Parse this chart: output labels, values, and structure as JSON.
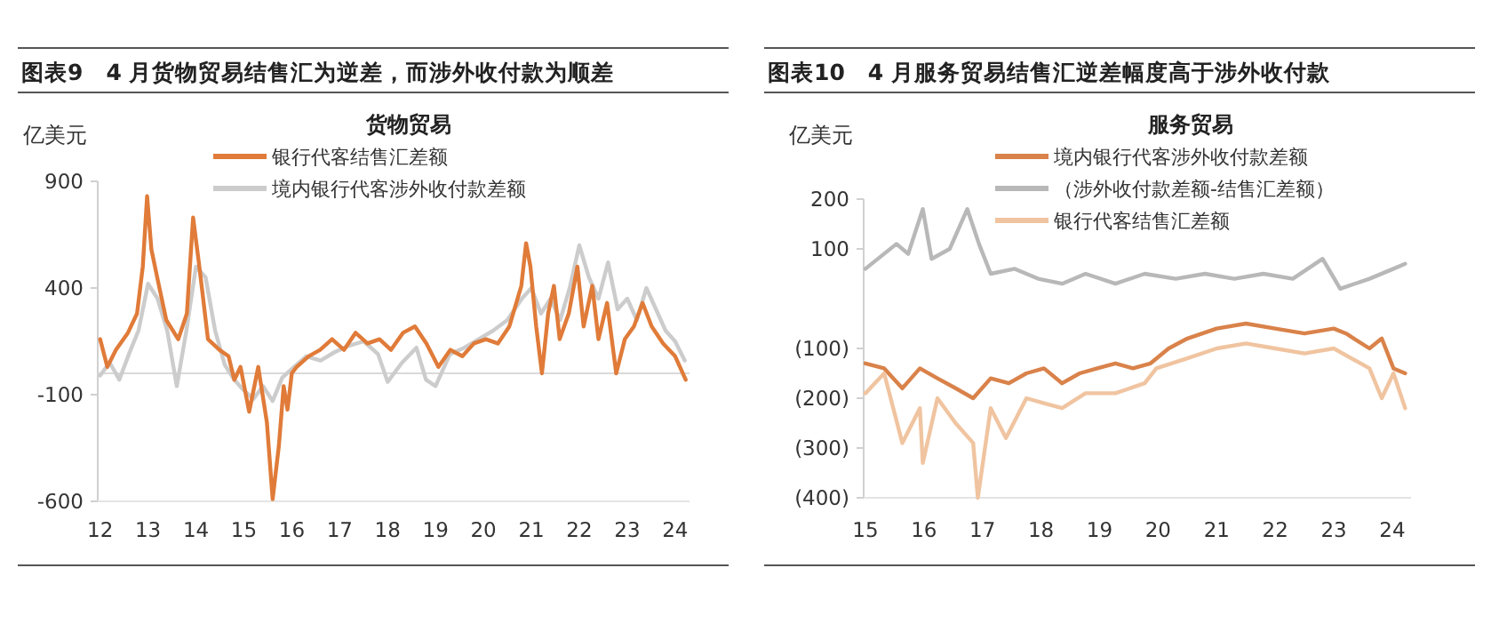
{
  "chart_data": [
    {
      "type": "line",
      "title": "图表9　4 月货物贸易结售汇为逆差，而涉外收付款为顺差",
      "legend_title": "货物贸易",
      "ylabel": "亿美元",
      "legend": "top",
      "xlim": [
        2011.95,
        2024.3
      ],
      "ylim": [
        -600,
        900
      ],
      "xticks": [
        {
          "value": 2012,
          "label": "12"
        },
        {
          "value": 2013,
          "label": "13"
        },
        {
          "value": 2014,
          "label": "14"
        },
        {
          "value": 2015,
          "label": "15"
        },
        {
          "value": 2016,
          "label": "16"
        },
        {
          "value": 2017,
          "label": "17"
        },
        {
          "value": 2018,
          "label": "18"
        },
        {
          "value": 2019,
          "label": "19"
        },
        {
          "value": 2020,
          "label": "20"
        },
        {
          "value": 2021,
          "label": "21"
        },
        {
          "value": 2022,
          "label": "22"
        },
        {
          "value": 2023,
          "label": "23"
        },
        {
          "value": 2024,
          "label": "24"
        }
      ],
      "yticks": [
        900,
        400,
        -100,
        -600
      ],
      "ref_lines": [
        {
          "axis": "y",
          "value": 0,
          "color": "#d9d9d9"
        }
      ],
      "series": [
        {
          "name": "境内银行代客涉外收付款差额",
          "color": "#cccccc",
          "x": [
            2012.0,
            2012.2,
            2012.4,
            2012.6,
            2012.8,
            2013.0,
            2013.2,
            2013.4,
            2013.6,
            2013.8,
            2014.0,
            2014.2,
            2014.4,
            2014.6,
            2014.8,
            2015.0,
            2015.2,
            2015.4,
            2015.6,
            2015.8,
            2016.0,
            2016.3,
            2016.6,
            2016.9,
            2017.2,
            2017.5,
            2017.8,
            2018.0,
            2018.3,
            2018.6,
            2018.8,
            2019.0,
            2019.3,
            2019.6,
            2019.9,
            2020.2,
            2020.5,
            2020.8,
            2021.0,
            2021.2,
            2021.4,
            2021.6,
            2021.8,
            2022.0,
            2022.2,
            2022.4,
            2022.6,
            2022.8,
            2023.0,
            2023.2,
            2023.4,
            2023.6,
            2023.8,
            2024.0,
            2024.2
          ],
          "values": [
            -10,
            50,
            -30,
            90,
            200,
            420,
            350,
            200,
            -60,
            200,
            500,
            450,
            200,
            40,
            -30,
            -80,
            -120,
            -60,
            -130,
            -20,
            20,
            80,
            60,
            100,
            130,
            150,
            90,
            -40,
            50,
            120,
            -30,
            -60,
            90,
            120,
            160,
            200,
            250,
            350,
            400,
            280,
            350,
            250,
            400,
            600,
            450,
            350,
            520,
            300,
            350,
            250,
            400,
            300,
            200,
            150,
            60
          ]
        },
        {
          "name": "银行代客结售汇差额",
          "color": "#e07b39",
          "x": [
            2012.0,
            2012.15,
            2012.33,
            2012.58,
            2012.77,
            2012.89,
            2012.98,
            2013.07,
            2013.2,
            2013.38,
            2013.63,
            2013.81,
            2013.94,
            2014.06,
            2014.25,
            2014.49,
            2014.68,
            2014.8,
            2014.93,
            2015.11,
            2015.3,
            2015.48,
            2015.6,
            2015.73,
            2015.83,
            2015.91,
            2016.0,
            2016.1,
            2016.35,
            2016.59,
            2016.84,
            2017.09,
            2017.33,
            2017.58,
            2017.83,
            2018.07,
            2018.32,
            2018.57,
            2018.81,
            2019.06,
            2019.31,
            2019.56,
            2019.8,
            2020.05,
            2020.3,
            2020.54,
            2020.79,
            2020.89,
            2020.98,
            2021.1,
            2021.22,
            2021.35,
            2021.47,
            2021.59,
            2021.78,
            2021.96,
            2022.09,
            2022.27,
            2022.4,
            2022.58,
            2022.77,
            2022.95,
            2023.14,
            2023.32,
            2023.51,
            2023.75,
            2024.0,
            2024.22
          ],
          "values": [
            160,
            30,
            110,
            190,
            280,
            500,
            830,
            580,
            440,
            250,
            160,
            280,
            730,
            520,
            160,
            110,
            80,
            -30,
            30,
            -180,
            30,
            -230,
            -590,
            -340,
            -60,
            -170,
            0,
            30,
            80,
            110,
            160,
            110,
            190,
            140,
            160,
            110,
            190,
            220,
            140,
            30,
            110,
            80,
            140,
            160,
            140,
            220,
            410,
            610,
            500,
            220,
            0,
            280,
            410,
            160,
            280,
            500,
            220,
            410,
            160,
            330,
            0,
            160,
            220,
            330,
            220,
            140,
            80,
            -30
          ]
        }
      ]
    },
    {
      "type": "line",
      "title": "图表10　4 月服务贸易结售汇逆差幅度高于涉外收付款",
      "legend_title": "服务贸易",
      "ylabel": "亿美元",
      "legend": "top",
      "xlim": [
        2014.97,
        2024.32
      ],
      "ylim": [
        -400,
        200
      ],
      "xticks": [
        {
          "value": 2015,
          "label": "15"
        },
        {
          "value": 2016,
          "label": "16"
        },
        {
          "value": 2017,
          "label": "17"
        },
        {
          "value": 2018,
          "label": "18"
        },
        {
          "value": 2019,
          "label": "19"
        },
        {
          "value": 2020,
          "label": "20"
        },
        {
          "value": 2021,
          "label": "21"
        },
        {
          "value": 2022,
          "label": "22"
        },
        {
          "value": 2023,
          "label": "23"
        },
        {
          "value": 2024,
          "label": "24"
        }
      ],
      "yticks": [
        200,
        100,
        {
          "value": -100,
          "label": "(100)"
        },
        {
          "value": -200,
          "label": "(200)"
        },
        {
          "value": -300,
          "label": "(300)"
        },
        {
          "value": -400,
          "label": "(400)"
        }
      ],
      "series": [
        {
          "name": "境内银行代客涉外收付款差额",
          "color": "#d9824a",
          "x": [
            2015.0,
            2015.32,
            2015.63,
            2015.93,
            2016.23,
            2016.54,
            2016.84,
            2017.14,
            2017.45,
            2017.75,
            2018.05,
            2018.36,
            2018.66,
            2018.96,
            2019.27,
            2019.57,
            2019.87,
            2020.18,
            2020.5,
            2021.0,
            2021.5,
            2022.0,
            2022.5,
            2023.0,
            2023.21,
            2023.61,
            2023.82,
            2024.02,
            2024.22
          ],
          "values": [
            -130,
            -140,
            -180,
            -140,
            -160,
            -180,
            -200,
            -160,
            -170,
            -150,
            -140,
            -170,
            -150,
            -140,
            -130,
            -140,
            -130,
            -100,
            -80,
            -60,
            -50,
            -60,
            -70,
            -60,
            -70,
            -100,
            -80,
            -140,
            -150
          ]
        },
        {
          "name": "（涉外收付款差额-结售汇差额）",
          "color": "#b8b8b8",
          "x": [
            2015.0,
            2015.53,
            2015.73,
            2015.98,
            2016.13,
            2016.44,
            2016.74,
            2016.94,
            2017.14,
            2017.55,
            2017.95,
            2018.36,
            2018.76,
            2019.27,
            2019.77,
            2020.3,
            2020.8,
            2021.3,
            2021.8,
            2022.3,
            2022.81,
            2023.11,
            2023.61,
            2024.02,
            2024.22
          ],
          "values": [
            60,
            110,
            90,
            180,
            80,
            100,
            180,
            110,
            50,
            60,
            40,
            30,
            50,
            30,
            50,
            40,
            50,
            40,
            50,
            40,
            80,
            20,
            40,
            60,
            70
          ]
        },
        {
          "name": "银行代客结售汇差额",
          "color": "#f0c4a0",
          "x": [
            2015.0,
            2015.32,
            2015.63,
            2015.93,
            2015.98,
            2016.23,
            2016.54,
            2016.84,
            2016.92,
            2017.14,
            2017.4,
            2017.75,
            2018.05,
            2018.36,
            2018.76,
            2019.27,
            2019.77,
            2019.97,
            2020.5,
            2021.0,
            2021.5,
            2022.0,
            2022.5,
            2023.0,
            2023.61,
            2023.82,
            2024.02,
            2024.22
          ],
          "values": [
            -190,
            -150,
            -290,
            -220,
            -330,
            -200,
            -250,
            -290,
            -400,
            -220,
            -280,
            -200,
            -210,
            -220,
            -190,
            -190,
            -170,
            -140,
            -120,
            -100,
            -90,
            -100,
            -110,
            -100,
            -140,
            -200,
            -150,
            -220
          ]
        }
      ]
    }
  ]
}
